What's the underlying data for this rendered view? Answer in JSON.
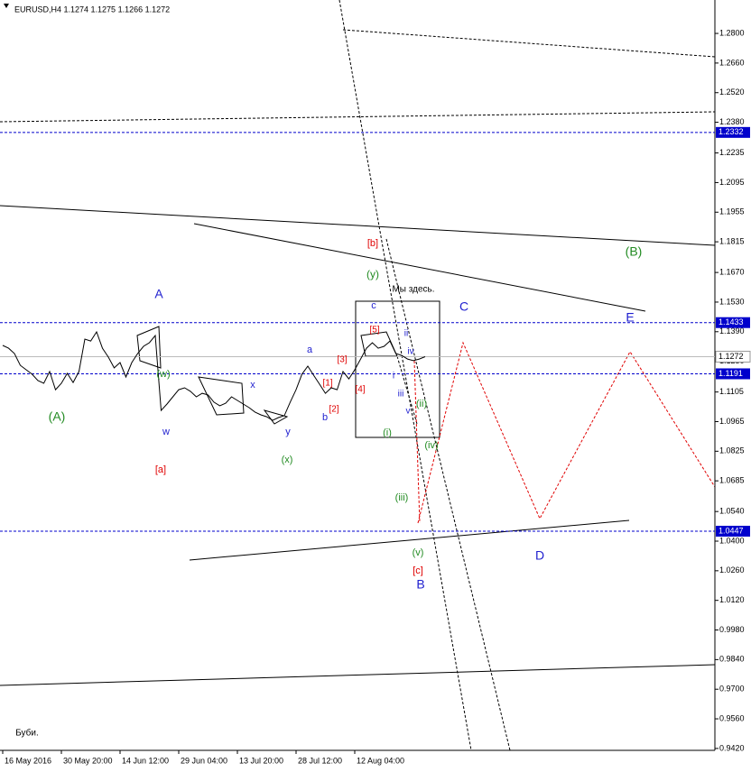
{
  "chart_data": {
    "type": "line",
    "title": "EURUSD,H4 1.1274 1.1275 1.1266 1.1272",
    "color": "#000000",
    "categories": [
      "16 May 2016",
      null,
      null,
      null,
      null,
      null,
      null,
      null,
      null,
      null,
      "30 May 20:00",
      null,
      null,
      null,
      null,
      null,
      null,
      null,
      null,
      null,
      "14 Jun 12:00",
      null,
      null,
      null,
      null,
      null,
      null,
      null,
      null,
      null,
      "29 Jun 04:00",
      null,
      null,
      null,
      null,
      null,
      null,
      null,
      null,
      null,
      "13 Jul 20:00",
      null,
      null,
      null,
      null,
      null,
      null,
      null,
      null,
      null,
      "28 Jul 12:00",
      null,
      null,
      null,
      null,
      null,
      null,
      null,
      null,
      null,
      "12 Aug 04:00",
      null,
      null,
      null,
      null,
      null,
      null,
      null,
      null,
      null,
      null,
      null,
      null
    ],
    "values": [
      1.1325,
      1.1312,
      1.1287,
      1.1231,
      1.121,
      1.1189,
      1.1159,
      1.1146,
      1.1202,
      1.1116,
      1.1146,
      1.1193,
      1.115,
      1.1202,
      1.1355,
      1.1346,
      1.1389,
      1.1312,
      1.127,
      1.1219,
      1.1244,
      1.1176,
      1.1244,
      1.1287,
      1.1321,
      1.1338,
      1.1372,
      1.1018,
      1.1048,
      1.1082,
      1.1116,
      1.1125,
      1.1108,
      1.1082,
      1.1099,
      1.1091,
      1.1057,
      1.104,
      1.1052,
      1.1082,
      1.1065,
      1.1048,
      1.1031,
      1.101,
      1.0997,
      1.0988,
      1.0971,
      1.0984,
      1.0993,
      1.1057,
      1.1116,
      1.1189,
      1.1227,
      1.1184,
      1.1142,
      1.1099,
      1.1125,
      1.1116,
      1.1202,
      1.1167,
      1.121,
      1.1261,
      1.1312,
      1.1338,
      1.1312,
      1.1321,
      1.1346,
      1.1287,
      1.1278,
      1.1261,
      1.1253,
      1.1261,
      1.1272
    ],
    "ylim": [
      0.9411,
      1.2958
    ],
    "yticks": [
      {
        "value": 1.28,
        "label": "1.2800"
      },
      {
        "value": 1.266,
        "label": "1.2660"
      },
      {
        "value": 1.252,
        "label": "1.2520"
      },
      {
        "value": 1.238,
        "label": "1.2380"
      },
      {
        "value": 1.2235,
        "label": "1.2235"
      },
      {
        "value": 1.2095,
        "label": "1.2095"
      },
      {
        "value": 1.1955,
        "label": "1.1955"
      },
      {
        "value": 1.1815,
        "label": "1.1815"
      },
      {
        "value": 1.167,
        "label": "1.1670"
      },
      {
        "value": 1.153,
        "label": "1.1530"
      },
      {
        "value": 1.139,
        "label": "1.1390"
      },
      {
        "value": 1.125,
        "label": "1.1250"
      },
      {
        "value": 1.1105,
        "label": "1.1105"
      },
      {
        "value": 1.0965,
        "label": "1.0965"
      },
      {
        "value": 1.0825,
        "label": "1.0825"
      },
      {
        "value": 1.0685,
        "label": "1.0685"
      },
      {
        "value": 1.054,
        "label": "1.0540"
      },
      {
        "value": 1.04,
        "label": "1.0400"
      },
      {
        "value": 1.026,
        "label": "1.0260"
      },
      {
        "value": 1.012,
        "label": "1.0120"
      },
      {
        "value": 0.998,
        "label": "0.9980"
      },
      {
        "value": 0.984,
        "label": "0.9840"
      },
      {
        "value": 0.97,
        "label": "0.9700"
      },
      {
        "value": 0.956,
        "label": "0.9560"
      },
      {
        "value": 0.942,
        "label": "0.9420"
      }
    ],
    "price_levels": [
      1.2332,
      1.1433,
      1.1191,
      1.0447
    ],
    "level_color": "#0000cc",
    "last_price": 1.1272,
    "annotations": [
      {
        "text": "Мы здесь.",
        "color": "#000000"
      },
      {
        "text": "(A)",
        "color": "#228b22"
      },
      {
        "text": "A",
        "color": "#1f1fcf"
      },
      {
        "text": "(w)",
        "color": "#228b22"
      },
      {
        "text": "w",
        "color": "#1f1fcf"
      },
      {
        "text": "[a]",
        "color": "#e00000"
      },
      {
        "text": "x",
        "color": "#1f1fcf"
      },
      {
        "text": "y",
        "color": "#1f1fcf"
      },
      {
        "text": "(x)",
        "color": "#228b22"
      },
      {
        "text": "a",
        "color": "#1f1fcf"
      },
      {
        "text": "b",
        "color": "#1f1fcf"
      },
      {
        "text": "[1]",
        "color": "#e00000"
      },
      {
        "text": "[2]",
        "color": "#e00000"
      },
      {
        "text": "[3]",
        "color": "#e00000"
      },
      {
        "text": "[4]",
        "color": "#e00000"
      },
      {
        "text": "[5]",
        "color": "#e00000"
      },
      {
        "text": "c",
        "color": "#1f1fcf"
      },
      {
        "text": "i",
        "color": "#1f1fcf"
      },
      {
        "text": "ii",
        "color": "#1f1fcf"
      },
      {
        "text": "iii",
        "color": "#1f1fcf"
      },
      {
        "text": "iv",
        "color": "#1f1fcf"
      },
      {
        "text": "v",
        "color": "#1f1fcf"
      },
      {
        "text": "(i)",
        "color": "#228b22"
      },
      {
        "text": "(ii)",
        "color": "#228b22"
      },
      {
        "text": "(iii)",
        "color": "#228b22"
      },
      {
        "text": "(iv)",
        "color": "#228b22"
      },
      {
        "text": "(v)",
        "color": "#228b22"
      },
      {
        "text": "[c]",
        "color": "#e00000"
      },
      {
        "text": "B",
        "color": "#1f1fcf"
      },
      {
        "text": "[b]",
        "color": "#e00000"
      },
      {
        "text": "(y)",
        "color": "#228b22"
      },
      {
        "text": "C",
        "color": "#1f1fcf"
      },
      {
        "text": "(B)",
        "color": "#228b22"
      },
      {
        "text": "E",
        "color": "#1f1fcf"
      },
      {
        "text": "D",
        "color": "#1f1fcf"
      },
      {
        "text": "Буби.",
        "color": "#000000"
      }
    ]
  }
}
